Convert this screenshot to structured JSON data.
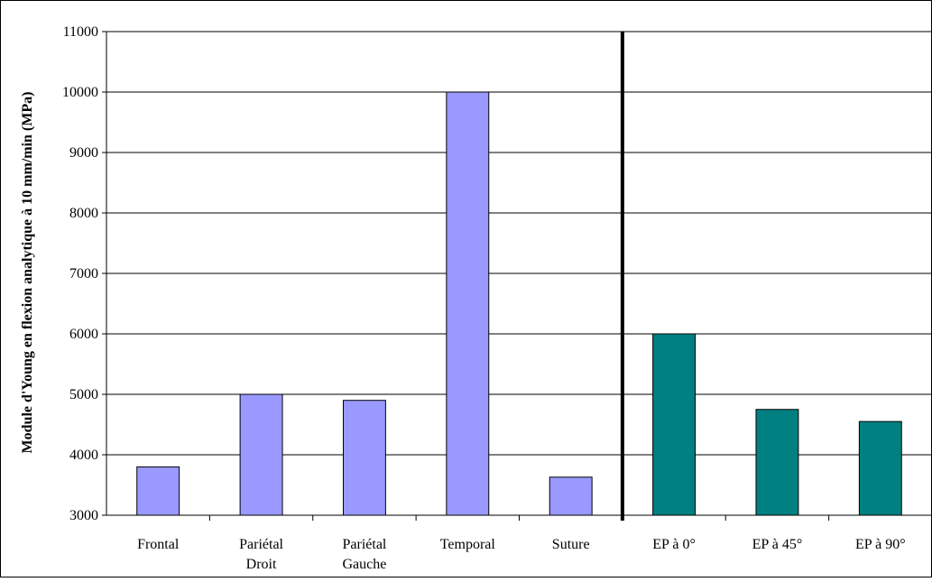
{
  "chart_data": {
    "type": "bar",
    "title": "",
    "xlabel": "",
    "ylabel": "Module d'Young en flexion analytique à 10 mm/min (MPa)",
    "ylim": [
      3000,
      11000
    ],
    "yticks": [
      3000,
      4000,
      5000,
      6000,
      7000,
      8000,
      9000,
      10000,
      11000
    ],
    "grid": true,
    "legend": "none",
    "categories": [
      [
        "Frontal"
      ],
      [
        "Pariétal",
        "Droit"
      ],
      [
        "Pariétal",
        "Gauche"
      ],
      [
        "Temporal"
      ],
      [
        "Suture"
      ],
      [
        "EP à 0°"
      ],
      [
        "EP à 45°"
      ],
      [
        "EP à 90°"
      ]
    ],
    "values": [
      3800,
      5000,
      4900,
      10000,
      3630,
      6000,
      4750,
      4550
    ],
    "bar_colors": [
      "#9999ff",
      "#9999ff",
      "#9999ff",
      "#9999ff",
      "#9999ff",
      "#008080",
      "#008080",
      "#008080"
    ],
    "separator_after_category": 5
  }
}
